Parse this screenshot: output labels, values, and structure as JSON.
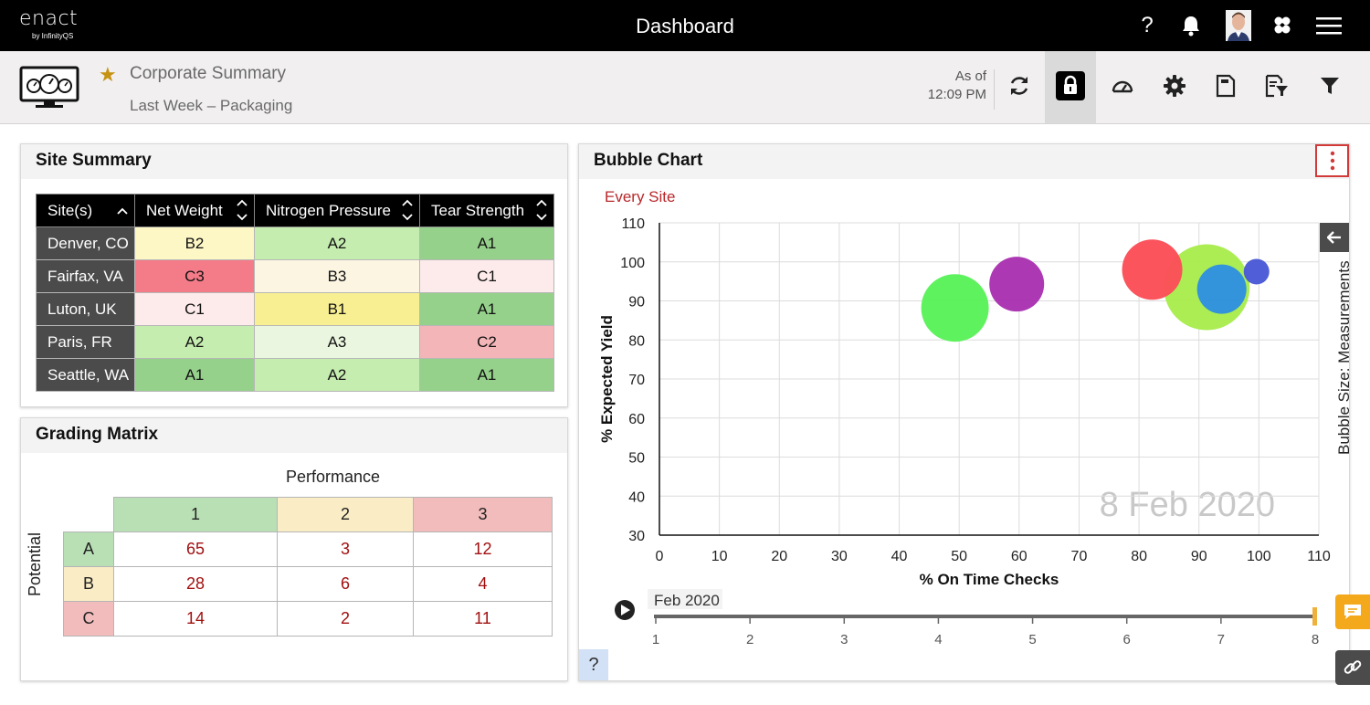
{
  "topbar": {
    "logo_main": "enact",
    "logo_sub": "by InfinityQS",
    "title": "Dashboard",
    "help": "?"
  },
  "subheader": {
    "title": "Corporate Summary",
    "subtitle": "Last Week – Packaging",
    "as_of_label": "As of",
    "as_of_time": "12:09 PM"
  },
  "site_summary": {
    "title": "Site Summary",
    "columns": [
      "Site(s)",
      "Net Weight",
      "Nitrogen Pressure",
      "Tear Strength"
    ],
    "rows": [
      {
        "site": "Denver, CO",
        "cells": [
          "B2",
          "A2",
          "A1"
        ]
      },
      {
        "site": "Fairfax, VA",
        "cells": [
          "C3",
          "B3",
          "C1"
        ]
      },
      {
        "site": "Luton, UK",
        "cells": [
          "C1",
          "B1",
          "A1"
        ]
      },
      {
        "site": "Paris, FR",
        "cells": [
          "A2",
          "A3",
          "C2"
        ]
      },
      {
        "site": "Seattle, WA",
        "cells": [
          "A1",
          "A2",
          "A1"
        ]
      }
    ],
    "cell_colors": {
      "A1": "#96d18c",
      "A2": "#c6edb0",
      "A3": "#eaf6df",
      "B1": "#f7ef91",
      "B2": "#fdf6c5",
      "B3": "#fcf5e2",
      "C1": "#fdeaea",
      "C2": "#f3b5b7",
      "C3": "#f47c88"
    }
  },
  "grading_matrix": {
    "title": "Grading Matrix",
    "performance_label": "Performance",
    "potential_label": "Potential",
    "columns": [
      "1",
      "2",
      "3"
    ],
    "column_colors": [
      "#b9e0b5",
      "#faedc6",
      "#f2bcbc"
    ],
    "rows": [
      {
        "label": "A",
        "color": "#b9e0b5",
        "values": [
          "65",
          "3",
          "12"
        ]
      },
      {
        "label": "B",
        "color": "#faedc6",
        "values": [
          "28",
          "6",
          "4"
        ]
      },
      {
        "label": "C",
        "color": "#f2bcbc",
        "values": [
          "14",
          "2",
          "11"
        ]
      }
    ]
  },
  "bubble_panel": {
    "title": "Bubble Chart",
    "every_site": "Every Site",
    "bubble_size_label": "Bubble Size: Measurements",
    "help": "?",
    "timeline": {
      "label": "Feb 2020",
      "ticks": [
        "1",
        "2",
        "3",
        "4",
        "5",
        "6",
        "7",
        "8"
      ],
      "position": 8
    }
  },
  "chart_data": {
    "type": "scatter",
    "title": "",
    "xlabel": "% On Time Checks",
    "ylabel": "% Expected Yield",
    "xlim": [
      0,
      110
    ],
    "ylim": [
      30,
      110
    ],
    "x_ticks": [
      "0",
      "10",
      "20",
      "30",
      "40",
      "50",
      "60",
      "70",
      "80",
      "90",
      "100",
      "110"
    ],
    "y_ticks": [
      "30",
      "40",
      "50",
      "60",
      "70",
      "80",
      "90",
      "100",
      "110"
    ],
    "watermark": "8 Feb 2020",
    "grid": true,
    "points": [
      {
        "x": 49.3,
        "y": 88.2,
        "size": 37,
        "color": "#5af25a"
      },
      {
        "x": 59.6,
        "y": 94.3,
        "size": 30,
        "color": "#a933b1"
      },
      {
        "x": 91.3,
        "y": 93.5,
        "size": 47,
        "color": "#a8ec4d"
      },
      {
        "x": 82.2,
        "y": 98.0,
        "size": 33,
        "color": "#fb4e58"
      },
      {
        "x": 93.8,
        "y": 93.0,
        "size": 27,
        "color": "#2e90e0"
      },
      {
        "x": 99.6,
        "y": 97.5,
        "size": 14,
        "color": "#4a59d6"
      }
    ]
  }
}
